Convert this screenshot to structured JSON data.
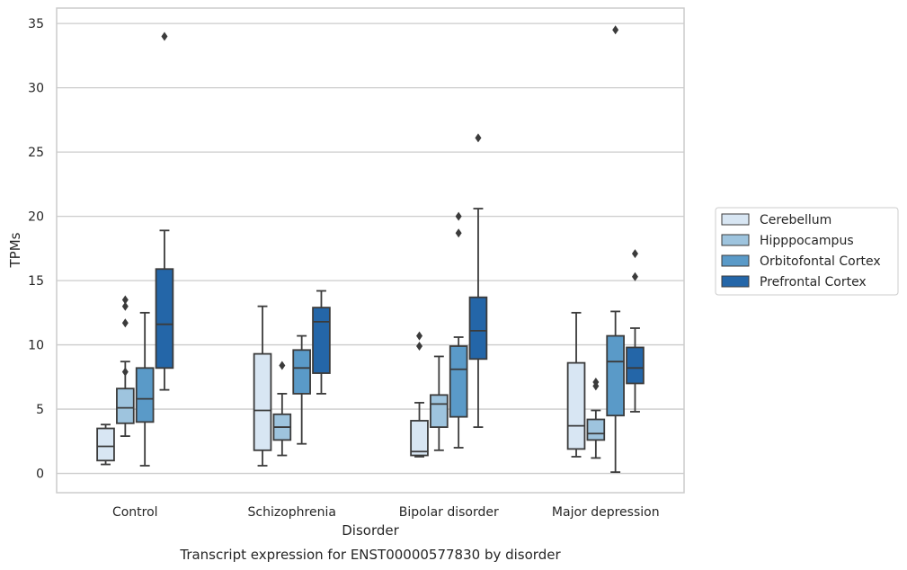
{
  "chart_data": {
    "type": "box",
    "title": "",
    "caption": "Transcript expression for ENST00000577830 by disorder",
    "xlabel": "Disorder",
    "ylabel": "TPMs",
    "ylim": [
      -1.5,
      36.2
    ],
    "yticks": [
      0,
      5,
      10,
      15,
      20,
      25,
      30,
      35
    ],
    "grid": "horizontal",
    "legend_position": "right",
    "categories": [
      "Control",
      "Schizophrenia",
      "Bipolar disorder",
      "Major depression"
    ],
    "series": [
      {
        "name": "Cerebellum",
        "color": "#d8e6f3",
        "boxes": [
          {
            "min": 0.7,
            "q1": 1.0,
            "median": 2.1,
            "q3": 3.5,
            "max": 3.8,
            "outliers": []
          },
          {
            "min": 0.6,
            "q1": 1.8,
            "median": 4.9,
            "q3": 9.3,
            "max": 13.0,
            "outliers": []
          },
          {
            "min": 1.3,
            "q1": 1.4,
            "median": 1.7,
            "q3": 4.1,
            "max": 5.5,
            "outliers": [
              9.9,
              10.7
            ]
          },
          {
            "min": 1.3,
            "q1": 1.9,
            "median": 3.7,
            "q3": 8.6,
            "max": 12.5,
            "outliers": []
          }
        ]
      },
      {
        "name": "Hipppocampus",
        "color": "#9ec4de",
        "boxes": [
          {
            "min": 2.9,
            "q1": 3.9,
            "median": 5.1,
            "q3": 6.6,
            "max": 8.7,
            "outliers": [
              7.9,
              11.7,
              13.0,
              13.5
            ]
          },
          {
            "min": 1.4,
            "q1": 2.6,
            "median": 3.6,
            "q3": 4.6,
            "max": 6.2,
            "outliers": [
              8.4
            ]
          },
          {
            "min": 1.8,
            "q1": 3.6,
            "median": 5.4,
            "q3": 6.1,
            "max": 9.1,
            "outliers": []
          },
          {
            "min": 1.2,
            "q1": 2.6,
            "median": 3.1,
            "q3": 4.2,
            "max": 4.9,
            "outliers": [
              6.8,
              7.1
            ]
          }
        ]
      },
      {
        "name": "Orbitofontal Cortex",
        "color": "#5a9ac8",
        "boxes": [
          {
            "min": 0.6,
            "q1": 4.0,
            "median": 5.8,
            "q3": 8.2,
            "max": 12.5,
            "outliers": []
          },
          {
            "min": 2.3,
            "q1": 6.2,
            "median": 8.2,
            "q3": 9.6,
            "max": 10.7,
            "outliers": []
          },
          {
            "min": 2.0,
            "q1": 4.4,
            "median": 8.1,
            "q3": 9.9,
            "max": 10.6,
            "outliers": [
              18.7,
              20.0
            ]
          },
          {
            "min": 0.1,
            "q1": 4.5,
            "median": 8.7,
            "q3": 10.7,
            "max": 12.6,
            "outliers": [
              34.5
            ]
          }
        ]
      },
      {
        "name": "Prefrontal Cortex",
        "color": "#2466a8",
        "boxes": [
          {
            "min": 6.5,
            "q1": 8.2,
            "median": 11.6,
            "q3": 15.9,
            "max": 18.9,
            "outliers": [
              34.0
            ]
          },
          {
            "min": 6.2,
            "q1": 7.8,
            "median": 11.8,
            "q3": 12.9,
            "max": 14.2,
            "outliers": []
          },
          {
            "min": 3.6,
            "q1": 8.9,
            "median": 11.1,
            "q3": 13.7,
            "max": 20.6,
            "outliers": [
              26.1
            ]
          },
          {
            "min": 4.8,
            "q1": 7.0,
            "median": 8.2,
            "q3": 9.8,
            "max": 11.3,
            "outliers": [
              15.3,
              17.1
            ]
          }
        ]
      }
    ]
  }
}
